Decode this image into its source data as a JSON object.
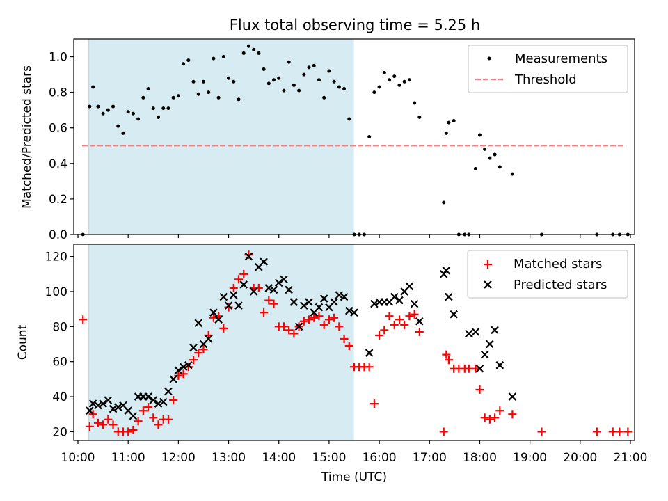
{
  "chart_data": [
    {
      "type": "scatter",
      "title": "Flux total observing time = 5.25 h",
      "ylabel": "Matched/Predicted stars",
      "xlabel": "",
      "xlim": [
        "09:55",
        "21:05"
      ],
      "ylim": [
        0,
        1.1
      ],
      "yticks": [
        0.0,
        0.2,
        0.4,
        0.6,
        0.8,
        1.0
      ],
      "ytick_labels": [
        "0.0",
        "0.2",
        "0.4",
        "0.6",
        "0.8",
        "1.0"
      ],
      "shaded_span": [
        "10:13",
        "15:29"
      ],
      "legend": {
        "placement": "top-right",
        "entries": [
          "Measurements",
          "Threshold"
        ]
      },
      "series": [
        {
          "name": "Measurements",
          "color": "#000000",
          "marker": "dot",
          "x": [
            "10:06",
            "10:14",
            "10:18",
            "10:24",
            "10:30",
            "10:36",
            "10:42",
            "10:48",
            "10:54",
            "11:00",
            "11:06",
            "11:12",
            "11:18",
            "11:24",
            "11:30",
            "11:36",
            "11:42",
            "11:48",
            "11:54",
            "12:00",
            "12:06",
            "12:12",
            "12:18",
            "12:24",
            "12:30",
            "12:36",
            "12:42",
            "12:48",
            "12:54",
            "13:00",
            "13:06",
            "13:12",
            "13:18",
            "13:24",
            "13:30",
            "13:36",
            "13:42",
            "13:48",
            "13:54",
            "14:00",
            "14:06",
            "14:12",
            "14:18",
            "14:24",
            "14:30",
            "14:36",
            "14:42",
            "14:48",
            "14:54",
            "15:00",
            "15:06",
            "15:12",
            "15:18",
            "15:24",
            "15:30",
            "15:36",
            "15:42",
            "15:48",
            "15:54",
            "16:00",
            "16:06",
            "16:12",
            "16:18",
            "16:24",
            "16:30",
            "16:36",
            "16:42",
            "16:48",
            "17:17",
            "17:20",
            "17:23",
            "17:29",
            "17:35",
            "17:42",
            "17:47",
            "17:55",
            "18:00",
            "18:06",
            "18:12",
            "18:18",
            "18:24",
            "18:39",
            "19:14",
            "20:20",
            "20:39",
            "20:47",
            "20:57"
          ],
          "y": [
            0.0,
            0.72,
            0.83,
            0.72,
            0.68,
            0.7,
            0.72,
            0.61,
            0.57,
            0.69,
            0.68,
            0.65,
            0.77,
            0.82,
            0.71,
            0.66,
            0.71,
            0.71,
            0.77,
            0.78,
            0.96,
            0.98,
            0.86,
            0.79,
            0.86,
            0.8,
            0.99,
            0.77,
            1.0,
            0.88,
            0.86,
            0.76,
            1.02,
            1.06,
            1.04,
            1.02,
            0.93,
            0.85,
            0.87,
            0.88,
            0.81,
            0.97,
            0.84,
            0.81,
            0.9,
            0.94,
            0.95,
            0.87,
            0.77,
            0.92,
            0.86,
            0.83,
            0.82,
            0.65,
            0.0,
            0.0,
            0.0,
            0.55,
            0.8,
            0.83,
            0.91,
            0.87,
            0.89,
            0.84,
            0.86,
            0.87,
            0.74,
            0.66,
            0.18,
            0.57,
            0.63,
            0.64,
            0.0,
            0.0,
            0.0,
            0.37,
            0.56,
            0.48,
            0.43,
            0.45,
            0.38,
            0.34,
            0.0,
            0.0,
            0.0,
            0.0,
            0.0
          ]
        },
        {
          "name": "Threshold",
          "color": "#f08080",
          "style": "dashed",
          "x": [
            "10:05",
            "20:55"
          ],
          "y": [
            0.5,
            0.5
          ]
        }
      ]
    },
    {
      "type": "scatter",
      "title": "",
      "ylabel": "Count",
      "xlabel": "Time (UTC)",
      "xlim": [
        "09:55",
        "21:05"
      ],
      "ylim": [
        15,
        127
      ],
      "yticks": [
        20,
        40,
        60,
        80,
        100,
        120
      ],
      "ytick_labels": [
        "20",
        "40",
        "60",
        "80",
        "100",
        "120"
      ],
      "xticks": [
        "10:00",
        "11:00",
        "12:00",
        "13:00",
        "14:00",
        "15:00",
        "16:00",
        "17:00",
        "18:00",
        "19:00",
        "20:00",
        "21:00"
      ],
      "xtick_labels": [
        "10:00",
        "11:00",
        "12:00",
        "13:00",
        "14:00",
        "15:00",
        "16:00",
        "17:00",
        "18:00",
        "19:00",
        "20:00",
        "21:00"
      ],
      "shaded_span": [
        "10:13",
        "15:29"
      ],
      "legend": {
        "placement": "top-right",
        "entries": [
          "Matched stars",
          "Predicted stars"
        ]
      },
      "series": [
        {
          "name": "Matched stars",
          "color": "#ff0000",
          "marker": "plus",
          "x": [
            "10:06",
            "10:14",
            "10:18",
            "10:24",
            "10:30",
            "10:36",
            "10:42",
            "10:48",
            "10:54",
            "11:00",
            "11:06",
            "11:12",
            "11:18",
            "11:24",
            "11:30",
            "11:36",
            "11:42",
            "11:48",
            "11:54",
            "12:00",
            "12:06",
            "12:12",
            "12:18",
            "12:24",
            "12:30",
            "12:36",
            "12:42",
            "12:48",
            "12:54",
            "13:00",
            "13:06",
            "13:12",
            "13:18",
            "13:24",
            "13:30",
            "13:36",
            "13:42",
            "13:48",
            "13:54",
            "14:00",
            "14:06",
            "14:12",
            "14:18",
            "14:24",
            "14:30",
            "14:36",
            "14:42",
            "14:48",
            "14:54",
            "15:00",
            "15:06",
            "15:12",
            "15:18",
            "15:24",
            "15:30",
            "15:36",
            "15:42",
            "15:48",
            "15:54",
            "16:00",
            "16:06",
            "16:12",
            "16:18",
            "16:24",
            "16:30",
            "16:36",
            "16:42",
            "16:48",
            "17:17",
            "17:20",
            "17:23",
            "17:29",
            "17:35",
            "17:42",
            "17:47",
            "17:55",
            "18:00",
            "18:06",
            "18:12",
            "18:18",
            "18:24",
            "18:39",
            "19:14",
            "20:20",
            "20:39",
            "20:47",
            "20:57"
          ],
          "y": [
            84,
            23,
            30,
            25,
            24,
            27,
            24,
            20,
            20,
            20,
            21,
            26,
            32,
            34,
            28,
            24,
            27,
            27,
            38,
            52,
            53,
            57,
            61,
            65,
            67,
            75,
            85,
            86,
            79,
            91,
            102,
            107,
            110,
            121,
            102,
            102,
            88,
            95,
            93,
            80,
            80,
            78,
            76,
            80,
            83,
            84,
            85,
            86,
            81,
            84,
            85,
            80,
            73,
            69,
            57,
            57,
            57,
            57,
            36,
            75,
            78,
            86,
            81,
            84,
            81,
            86,
            87,
            77,
            20,
            64,
            61,
            56,
            56,
            56,
            56,
            56,
            44,
            28,
            27,
            28,
            32,
            30,
            20,
            20,
            20,
            20,
            20
          ]
        },
        {
          "name": "Predicted stars",
          "color": "#000000",
          "marker": "x",
          "x": [
            "10:14",
            "10:18",
            "10:24",
            "10:30",
            "10:36",
            "10:42",
            "10:48",
            "10:54",
            "11:00",
            "11:06",
            "11:12",
            "11:18",
            "11:24",
            "11:30",
            "11:36",
            "11:42",
            "11:48",
            "11:54",
            "12:00",
            "12:06",
            "12:12",
            "12:18",
            "12:24",
            "12:30",
            "12:36",
            "12:42",
            "12:48",
            "12:54",
            "13:00",
            "13:06",
            "13:12",
            "13:18",
            "13:24",
            "13:30",
            "13:36",
            "13:42",
            "13:48",
            "13:54",
            "14:00",
            "14:06",
            "14:12",
            "14:18",
            "14:24",
            "14:30",
            "14:36",
            "14:42",
            "14:48",
            "14:54",
            "15:00",
            "15:06",
            "15:12",
            "15:18",
            "15:24",
            "15:30",
            "15:48",
            "15:54",
            "16:00",
            "16:06",
            "16:12",
            "16:18",
            "16:24",
            "16:30",
            "16:36",
            "16:42",
            "16:48",
            "17:17",
            "17:20",
            "17:23",
            "17:29",
            "17:47",
            "17:55",
            "18:00",
            "18:06",
            "18:12",
            "18:18",
            "18:24",
            "18:39"
          ],
          "y": [
            32,
            36,
            35,
            36,
            38,
            33,
            34,
            35,
            32,
            29,
            40,
            40,
            40,
            38,
            36,
            37,
            43,
            50,
            55,
            57,
            58,
            68,
            82,
            70,
            73,
            88,
            84,
            97,
            92,
            98,
            92,
            104,
            120,
            100,
            114,
            117,
            102,
            101,
            105,
            107,
            101,
            94,
            80,
            92,
            94,
            88,
            91,
            96,
            91,
            94,
            98,
            97,
            89,
            88,
            65,
            93,
            94,
            94,
            94,
            97,
            95,
            100,
            103,
            93,
            83,
            110,
            112,
            97,
            87,
            76,
            77,
            56,
            64,
            70,
            78,
            58,
            40
          ]
        }
      ]
    }
  ]
}
